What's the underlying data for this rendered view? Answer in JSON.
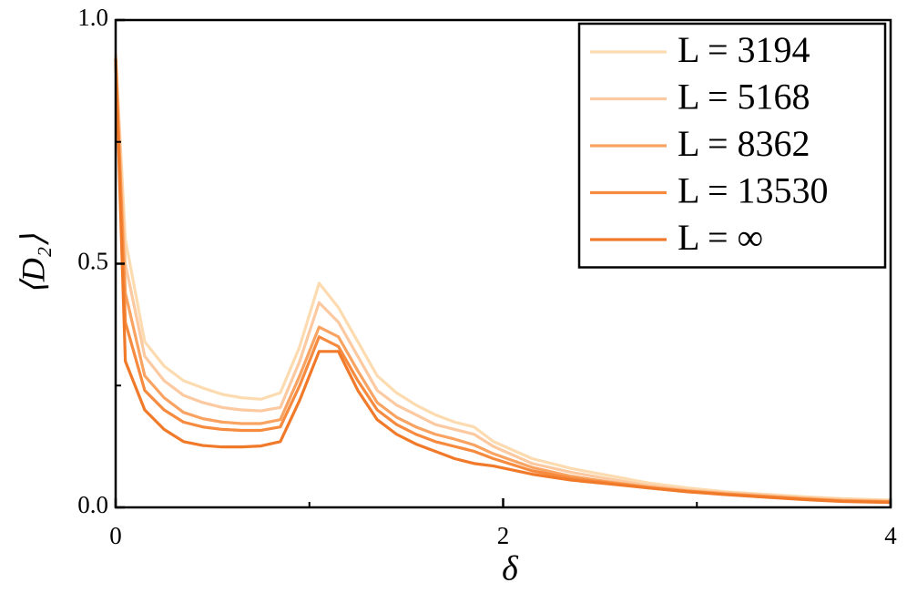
{
  "chart_data": {
    "type": "line",
    "xlabel": "δ",
    "ylabel": "⟨D₂⟩",
    "x": [
      0,
      0.05,
      0.15,
      0.25,
      0.35,
      0.45,
      0.55,
      0.65,
      0.75,
      0.85,
      0.95,
      1.05,
      1.15,
      1.25,
      1.35,
      1.45,
      1.55,
      1.65,
      1.75,
      1.85,
      1.95,
      2.15,
      2.35,
      2.55,
      2.75,
      2.95,
      3.15,
      3.35,
      3.55,
      3.75,
      4.0
    ],
    "series": [
      {
        "name": "L = 3194",
        "color": "#fddbb0",
        "values": [
          0.93,
          0.55,
          0.34,
          0.29,
          0.26,
          0.245,
          0.232,
          0.225,
          0.222,
          0.235,
          0.33,
          0.46,
          0.41,
          0.34,
          0.27,
          0.235,
          0.21,
          0.19,
          0.175,
          0.165,
          0.135,
          0.1,
          0.08,
          0.065,
          0.05,
          0.04,
          0.032,
          0.027,
          0.022,
          0.018,
          0.015
        ]
      },
      {
        "name": "L = 5168",
        "color": "#fcc9a0",
        "values": [
          0.93,
          0.5,
          0.31,
          0.26,
          0.23,
          0.215,
          0.205,
          0.2,
          0.198,
          0.205,
          0.3,
          0.42,
          0.38,
          0.31,
          0.24,
          0.21,
          0.19,
          0.17,
          0.16,
          0.15,
          0.125,
          0.09,
          0.072,
          0.058,
          0.045,
          0.036,
          0.03,
          0.025,
          0.02,
          0.016,
          0.013
        ]
      },
      {
        "name": "L = 8362",
        "color": "#f9a362",
        "values": [
          0.92,
          0.44,
          0.27,
          0.225,
          0.195,
          0.182,
          0.175,
          0.172,
          0.172,
          0.18,
          0.27,
          0.37,
          0.35,
          0.28,
          0.215,
          0.185,
          0.165,
          0.15,
          0.14,
          0.128,
          0.11,
          0.082,
          0.064,
          0.052,
          0.042,
          0.034,
          0.028,
          0.023,
          0.018,
          0.014,
          0.012
        ]
      },
      {
        "name": "L = 13530",
        "color": "#f68a3e",
        "values": [
          0.92,
          0.38,
          0.24,
          0.2,
          0.175,
          0.165,
          0.16,
          0.158,
          0.158,
          0.165,
          0.25,
          0.35,
          0.33,
          0.26,
          0.2,
          0.17,
          0.15,
          0.135,
          0.125,
          0.115,
          0.1,
          0.075,
          0.06,
          0.05,
          0.04,
          0.033,
          0.027,
          0.022,
          0.017,
          0.013,
          0.011
        ]
      },
      {
        "name": "L = ∞",
        "color": "#f07a2a",
        "values": [
          0.92,
          0.3,
          0.2,
          0.16,
          0.135,
          0.127,
          0.124,
          0.124,
          0.126,
          0.135,
          0.22,
          0.32,
          0.32,
          0.24,
          0.18,
          0.15,
          0.13,
          0.115,
          0.1,
          0.09,
          0.085,
          0.068,
          0.056,
          0.048,
          0.04,
          0.032,
          0.026,
          0.021,
          0.016,
          0.012,
          0.01
        ]
      }
    ],
    "xlim": [
      0,
      4
    ],
    "xticks": [
      0,
      2,
      4
    ],
    "xminor": [
      1,
      3
    ],
    "ylim": [
      0,
      1
    ],
    "yticks": [
      {
        "value": 0,
        "label": "0.0"
      },
      0.5,
      {
        "value": 1,
        "label": "1.0"
      }
    ],
    "yminor": [
      0.25,
      0.75
    ],
    "legend": "upper-right"
  }
}
